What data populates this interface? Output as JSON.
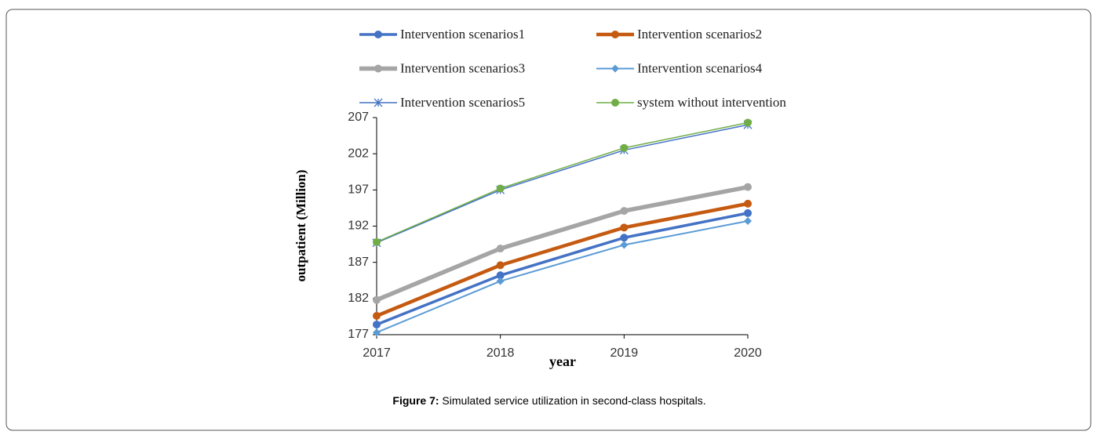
{
  "chart_data": {
    "type": "line",
    "x_label": "year",
    "y_label": "outpatient (Million)",
    "caption_label": "Figure 7:",
    "caption": "Simulated service utilization in second-class hospitals.",
    "x": [
      2017,
      2018,
      2019,
      2020
    ],
    "xlim": [
      2017,
      2020
    ],
    "xticks": [
      2017,
      2018,
      2019,
      2020
    ],
    "ylim": [
      177,
      207
    ],
    "yticks": [
      177,
      182,
      187,
      192,
      197,
      202,
      207
    ],
    "grid": false,
    "series": [
      {
        "name": "Intervention scenarios1",
        "color": "#4472c4",
        "marker": "circle",
        "line_width": 3.5,
        "values": [
          178.4,
          185.2,
          190.4,
          193.8
        ]
      },
      {
        "name": "Intervention scenarios2",
        "color": "#c55a11",
        "marker": "circle",
        "line_width": 4.5,
        "values": [
          179.6,
          186.6,
          191.8,
          195.1
        ]
      },
      {
        "name": "Intervention scenarios3",
        "color": "#a5a5a5",
        "marker": "circle",
        "line_width": 5.5,
        "values": [
          181.8,
          188.9,
          194.1,
          197.4
        ]
      },
      {
        "name": "Intervention scenarios4",
        "color": "#5b9bd5",
        "marker": "diamond",
        "line_width": 2,
        "values": [
          177.3,
          184.4,
          189.4,
          192.7
        ]
      },
      {
        "name": "Intervention scenarios5",
        "color": "#4472c4",
        "marker": "asterisk",
        "line_width": 1.5,
        "values": [
          189.7,
          197.0,
          202.5,
          206.0
        ]
      },
      {
        "name": "system without intervention",
        "color": "#70ad47",
        "marker": "circle",
        "line_width": 1.5,
        "values": [
          189.8,
          197.2,
          202.8,
          206.3
        ]
      }
    ]
  }
}
